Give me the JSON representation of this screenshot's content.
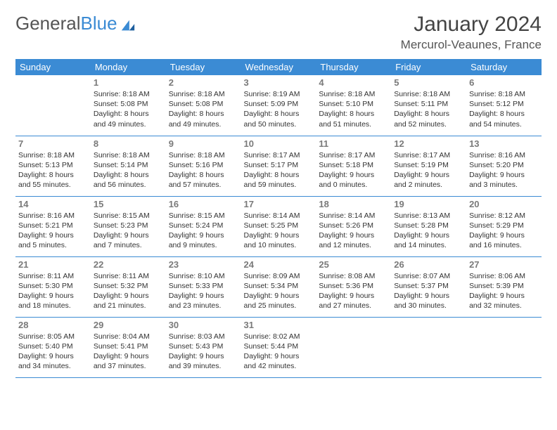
{
  "logo": {
    "text_a": "General",
    "text_b": "Blue"
  },
  "title": "January 2024",
  "location": "Mercurol-Veaunes, France",
  "colors": {
    "accent": "#3b8bd4",
    "text": "#333333",
    "muted": "#7a7a7a",
    "bg": "#ffffff"
  },
  "weekdays": [
    "Sunday",
    "Monday",
    "Tuesday",
    "Wednesday",
    "Thursday",
    "Friday",
    "Saturday"
  ],
  "weeks": [
    [
      null,
      {
        "n": "1",
        "sr": "8:18 AM",
        "ss": "5:08 PM",
        "dl": "8 hours and 49 minutes."
      },
      {
        "n": "2",
        "sr": "8:18 AM",
        "ss": "5:08 PM",
        "dl": "8 hours and 49 minutes."
      },
      {
        "n": "3",
        "sr": "8:19 AM",
        "ss": "5:09 PM",
        "dl": "8 hours and 50 minutes."
      },
      {
        "n": "4",
        "sr": "8:18 AM",
        "ss": "5:10 PM",
        "dl": "8 hours and 51 minutes."
      },
      {
        "n": "5",
        "sr": "8:18 AM",
        "ss": "5:11 PM",
        "dl": "8 hours and 52 minutes."
      },
      {
        "n": "6",
        "sr": "8:18 AM",
        "ss": "5:12 PM",
        "dl": "8 hours and 54 minutes."
      }
    ],
    [
      {
        "n": "7",
        "sr": "8:18 AM",
        "ss": "5:13 PM",
        "dl": "8 hours and 55 minutes."
      },
      {
        "n": "8",
        "sr": "8:18 AM",
        "ss": "5:14 PM",
        "dl": "8 hours and 56 minutes."
      },
      {
        "n": "9",
        "sr": "8:18 AM",
        "ss": "5:16 PM",
        "dl": "8 hours and 57 minutes."
      },
      {
        "n": "10",
        "sr": "8:17 AM",
        "ss": "5:17 PM",
        "dl": "8 hours and 59 minutes."
      },
      {
        "n": "11",
        "sr": "8:17 AM",
        "ss": "5:18 PM",
        "dl": "9 hours and 0 minutes."
      },
      {
        "n": "12",
        "sr": "8:17 AM",
        "ss": "5:19 PM",
        "dl": "9 hours and 2 minutes."
      },
      {
        "n": "13",
        "sr": "8:16 AM",
        "ss": "5:20 PM",
        "dl": "9 hours and 3 minutes."
      }
    ],
    [
      {
        "n": "14",
        "sr": "8:16 AM",
        "ss": "5:21 PM",
        "dl": "9 hours and 5 minutes."
      },
      {
        "n": "15",
        "sr": "8:15 AM",
        "ss": "5:23 PM",
        "dl": "9 hours and 7 minutes."
      },
      {
        "n": "16",
        "sr": "8:15 AM",
        "ss": "5:24 PM",
        "dl": "9 hours and 9 minutes."
      },
      {
        "n": "17",
        "sr": "8:14 AM",
        "ss": "5:25 PM",
        "dl": "9 hours and 10 minutes."
      },
      {
        "n": "18",
        "sr": "8:14 AM",
        "ss": "5:26 PM",
        "dl": "9 hours and 12 minutes."
      },
      {
        "n": "19",
        "sr": "8:13 AM",
        "ss": "5:28 PM",
        "dl": "9 hours and 14 minutes."
      },
      {
        "n": "20",
        "sr": "8:12 AM",
        "ss": "5:29 PM",
        "dl": "9 hours and 16 minutes."
      }
    ],
    [
      {
        "n": "21",
        "sr": "8:11 AM",
        "ss": "5:30 PM",
        "dl": "9 hours and 18 minutes."
      },
      {
        "n": "22",
        "sr": "8:11 AM",
        "ss": "5:32 PM",
        "dl": "9 hours and 21 minutes."
      },
      {
        "n": "23",
        "sr": "8:10 AM",
        "ss": "5:33 PM",
        "dl": "9 hours and 23 minutes."
      },
      {
        "n": "24",
        "sr": "8:09 AM",
        "ss": "5:34 PM",
        "dl": "9 hours and 25 minutes."
      },
      {
        "n": "25",
        "sr": "8:08 AM",
        "ss": "5:36 PM",
        "dl": "9 hours and 27 minutes."
      },
      {
        "n": "26",
        "sr": "8:07 AM",
        "ss": "5:37 PM",
        "dl": "9 hours and 30 minutes."
      },
      {
        "n": "27",
        "sr": "8:06 AM",
        "ss": "5:39 PM",
        "dl": "9 hours and 32 minutes."
      }
    ],
    [
      {
        "n": "28",
        "sr": "8:05 AM",
        "ss": "5:40 PM",
        "dl": "9 hours and 34 minutes."
      },
      {
        "n": "29",
        "sr": "8:04 AM",
        "ss": "5:41 PM",
        "dl": "9 hours and 37 minutes."
      },
      {
        "n": "30",
        "sr": "8:03 AM",
        "ss": "5:43 PM",
        "dl": "9 hours and 39 minutes."
      },
      {
        "n": "31",
        "sr": "8:02 AM",
        "ss": "5:44 PM",
        "dl": "9 hours and 42 minutes."
      },
      null,
      null,
      null
    ]
  ],
  "labels": {
    "sunrise": "Sunrise:",
    "sunset": "Sunset:",
    "daylight": "Daylight:"
  }
}
